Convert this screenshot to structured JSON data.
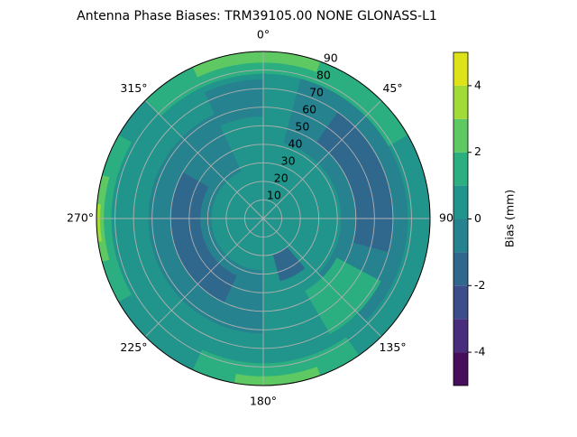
{
  "chart_data": {
    "type": "polar-contour",
    "title": "Antenna Phase Biases: TRM39105.00     NONE GLONASS-L1",
    "theta_ticks": [
      {
        "value": 0,
        "label": "0°"
      },
      {
        "value": 45,
        "label": "45°"
      },
      {
        "value": 90,
        "label": "90"
      },
      {
        "value": 135,
        "label": "135°"
      },
      {
        "value": 180,
        "label": "180°"
      },
      {
        "value": 225,
        "label": "225°"
      },
      {
        "value": 270,
        "label": "270°"
      },
      {
        "value": 315,
        "label": "315°"
      }
    ],
    "rlim": [
      0,
      90
    ],
    "rticks": [
      10,
      20,
      30,
      40,
      50,
      60,
      70,
      80,
      90
    ],
    "grid": true,
    "colorbar": {
      "label": "Bias (mm)",
      "levels": [
        -5,
        -4,
        -3,
        -2,
        -1,
        0,
        1,
        2,
        3,
        4,
        5
      ],
      "colors": [
        "#450f5c",
        "#472d7b",
        "#3b4d8a",
        "#30678d",
        "#26828e",
        "#21958b",
        "#2bae80",
        "#5ec962",
        "#a2da37",
        "#dde318"
      ],
      "ticks": [
        -4,
        -2,
        0,
        2,
        4
      ]
    }
  }
}
